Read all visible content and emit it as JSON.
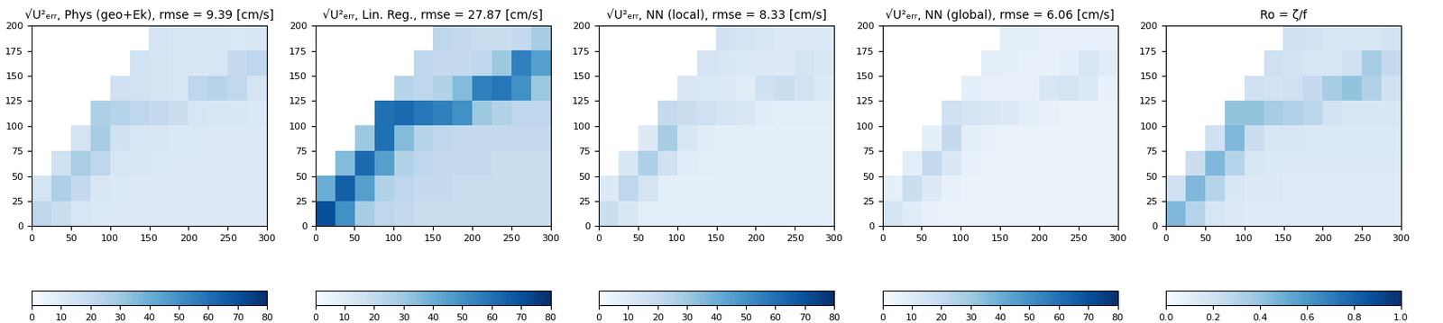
{
  "chart_data": [
    {
      "type": "heatmap",
      "title": "√U²ₑᵣᵣ, Phys (geo+Ek), rmse = 9.39 [cm/s]",
      "color": "Blues",
      "xlim": [
        0,
        300
      ],
      "ylim": [
        0,
        200
      ],
      "xticks": [
        0,
        50,
        100,
        150,
        200,
        250,
        300
      ],
      "yticks": [
        0,
        25,
        50,
        75,
        100,
        125,
        150,
        175,
        200
      ],
      "cells": [
        [
          null,
          null,
          null,
          null,
          null,
          null,
          14,
          13,
          12,
          12,
          11,
          12
        ],
        [
          null,
          null,
          null,
          null,
          null,
          15,
          14,
          13,
          12,
          13,
          20,
          22
        ],
        [
          null,
          null,
          null,
          null,
          16,
          15,
          14,
          13,
          22,
          24,
          21,
          14
        ],
        [
          null,
          null,
          null,
          26,
          24,
          22,
          20,
          18,
          13,
          12,
          12,
          11
        ],
        [
          null,
          null,
          14,
          28,
          16,
          13,
          12,
          11,
          11,
          10,
          10,
          10
        ],
        [
          null,
          16,
          27,
          22,
          13,
          12,
          11,
          10,
          10,
          10,
          10,
          10
        ],
        [
          14,
          26,
          20,
          12,
          11,
          10,
          10,
          10,
          10,
          10,
          10,
          10
        ],
        [
          22,
          18,
          13,
          11,
          10,
          10,
          10,
          10,
          10,
          10,
          10,
          10
        ]
      ],
      "colorbar_range": [
        0,
        80
      ],
      "colorbar_ticks": [
        0,
        10,
        20,
        30,
        40,
        50,
        60,
        70,
        80
      ]
    },
    {
      "type": "heatmap",
      "title": "√U²ₑᵣᵣ, Lin. Reg., rmse = 27.87 [cm/s]",
      "color": "Blues",
      "xlim": [
        0,
        300
      ],
      "ylim": [
        0,
        200
      ],
      "xticks": [
        0,
        50,
        100,
        150,
        200,
        250,
        300
      ],
      "yticks": [
        0,
        25,
        50,
        75,
        100,
        125,
        150,
        175,
        200
      ],
      "cells": [
        [
          null,
          null,
          null,
          null,
          null,
          null,
          22,
          20,
          18,
          18,
          20,
          28
        ],
        [
          null,
          null,
          null,
          null,
          null,
          22,
          20,
          20,
          22,
          30,
          55,
          45
        ],
        [
          null,
          null,
          null,
          null,
          24,
          22,
          25,
          35,
          55,
          58,
          50,
          30
        ],
        [
          null,
          null,
          null,
          60,
          62,
          58,
          55,
          50,
          30,
          25,
          22,
          22
        ],
        [
          null,
          null,
          30,
          60,
          35,
          24,
          22,
          20,
          20,
          20,
          20,
          20
        ],
        [
          null,
          35,
          62,
          45,
          25,
          22,
          20,
          20,
          20,
          18,
          18,
          18
        ],
        [
          40,
          65,
          45,
          25,
          22,
          20,
          20,
          18,
          18,
          18,
          18,
          18
        ],
        [
          70,
          50,
          28,
          22,
          20,
          18,
          18,
          18,
          18,
          18,
          18,
          18
        ]
      ],
      "colorbar_range": [
        0,
        80
      ],
      "colorbar_ticks": [
        0,
        10,
        20,
        30,
        40,
        50,
        60,
        70,
        80
      ]
    },
    {
      "type": "heatmap",
      "title": "√U²ₑᵣᵣ, NN (local), rmse = 8.33 [cm/s]",
      "color": "Blues",
      "xlim": [
        0,
        300
      ],
      "ylim": [
        0,
        200
      ],
      "xticks": [
        0,
        50,
        100,
        150,
        200,
        250,
        300
      ],
      "yticks": [
        0,
        25,
        50,
        75,
        100,
        125,
        150,
        175,
        200
      ],
      "cells": [
        [
          null,
          null,
          null,
          null,
          null,
          null,
          16,
          14,
          12,
          10,
          10,
          10
        ],
        [
          null,
          null,
          null,
          null,
          null,
          14,
          12,
          11,
          10,
          10,
          14,
          12
        ],
        [
          null,
          null,
          null,
          null,
          12,
          11,
          10,
          9,
          16,
          18,
          15,
          10
        ],
        [
          null,
          null,
          null,
          20,
          18,
          16,
          14,
          12,
          9,
          8,
          8,
          8
        ],
        [
          null,
          null,
          10,
          28,
          12,
          9,
          8,
          7,
          7,
          7,
          7,
          7
        ],
        [
          null,
          12,
          26,
          16,
          9,
          8,
          7,
          7,
          7,
          7,
          7,
          7
        ],
        [
          10,
          22,
          14,
          8,
          7,
          7,
          7,
          7,
          7,
          7,
          7,
          7
        ],
        [
          18,
          12,
          8,
          7,
          7,
          7,
          7,
          7,
          7,
          7,
          7,
          7
        ]
      ],
      "colorbar_range": [
        0,
        80
      ],
      "colorbar_ticks": [
        0,
        10,
        20,
        30,
        40,
        50,
        60,
        70,
        80
      ]
    },
    {
      "type": "heatmap",
      "title": "√U²ₑᵣᵣ, NN (global), rmse = 6.06 [cm/s]",
      "color": "Blues",
      "xlim": [
        0,
        300
      ],
      "ylim": [
        0,
        200
      ],
      "xticks": [
        0,
        50,
        100,
        150,
        200,
        250,
        300
      ],
      "yticks": [
        0,
        25,
        50,
        75,
        100,
        125,
        150,
        175,
        200
      ],
      "cells": [
        [
          null,
          null,
          null,
          null,
          null,
          null,
          8,
          7,
          6,
          6,
          6,
          6
        ],
        [
          null,
          null,
          null,
          null,
          null,
          8,
          7,
          6,
          6,
          7,
          12,
          9
        ],
        [
          null,
          null,
          null,
          null,
          7,
          6,
          6,
          6,
          12,
          14,
          11,
          6
        ],
        [
          null,
          null,
          null,
          16,
          14,
          12,
          10,
          8,
          6,
          5,
          5,
          5
        ],
        [
          null,
          null,
          7,
          20,
          8,
          6,
          5,
          5,
          5,
          5,
          5,
          5
        ],
        [
          null,
          8,
          20,
          12,
          6,
          5,
          5,
          5,
          5,
          5,
          5,
          5
        ],
        [
          7,
          18,
          10,
          6,
          5,
          5,
          5,
          5,
          5,
          5,
          5,
          5
        ],
        [
          14,
          9,
          6,
          5,
          5,
          5,
          5,
          5,
          5,
          5,
          5,
          5
        ]
      ],
      "colorbar_range": [
        0,
        80
      ],
      "colorbar_ticks": [
        0,
        10,
        20,
        30,
        40,
        50,
        60,
        70,
        80
      ]
    },
    {
      "type": "heatmap",
      "title": "Ro = ζ/f",
      "color": "Blues",
      "xlim": [
        0,
        300
      ],
      "ylim": [
        0,
        200
      ],
      "xticks": [
        0,
        50,
        100,
        150,
        200,
        250,
        300
      ],
      "yticks": [
        0,
        25,
        50,
        75,
        100,
        125,
        150,
        175,
        200
      ],
      "cells": [
        [
          null,
          null,
          null,
          null,
          null,
          null,
          0.2,
          0.18,
          0.16,
          0.15,
          0.15,
          0.18
        ],
        [
          null,
          null,
          null,
          null,
          null,
          0.2,
          0.18,
          0.16,
          0.16,
          0.2,
          0.35,
          0.25
        ],
        [
          null,
          null,
          null,
          null,
          0.2,
          0.18,
          0.2,
          0.25,
          0.35,
          0.4,
          0.32,
          0.2
        ],
        [
          null,
          null,
          null,
          0.4,
          0.4,
          0.35,
          0.32,
          0.28,
          0.18,
          0.15,
          0.15,
          0.15
        ],
        [
          null,
          null,
          0.2,
          0.45,
          0.22,
          0.16,
          0.15,
          0.14,
          0.14,
          0.14,
          0.14,
          0.14
        ],
        [
          null,
          0.22,
          0.45,
          0.3,
          0.16,
          0.14,
          0.13,
          0.13,
          0.13,
          0.13,
          0.13,
          0.13
        ],
        [
          0.2,
          0.45,
          0.3,
          0.15,
          0.13,
          0.13,
          0.12,
          0.12,
          0.12,
          0.12,
          0.12,
          0.12
        ],
        [
          0.45,
          0.3,
          0.16,
          0.13,
          0.12,
          0.12,
          0.12,
          0.12,
          0.12,
          0.12,
          0.12,
          0.12
        ]
      ],
      "colorbar_range": [
        0,
        1
      ],
      "colorbar_ticks": [
        {
          "value": 0,
          "label": "0.0"
        },
        0.2,
        0.4,
        0.6,
        0.8,
        {
          "value": 1,
          "label": "1.0"
        }
      ]
    }
  ]
}
